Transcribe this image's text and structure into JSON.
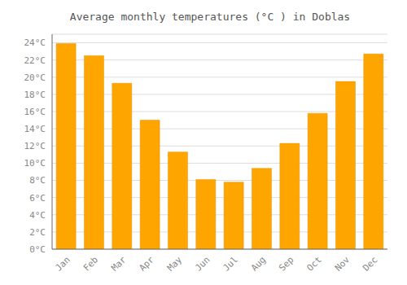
{
  "chart_data": {
    "type": "bar",
    "title": "Average monthly temperatures (°C ) in Doblas",
    "categories": [
      "Jan",
      "Feb",
      "Mar",
      "Apr",
      "May",
      "Jun",
      "Jul",
      "Aug",
      "Sep",
      "Oct",
      "Nov",
      "Dec"
    ],
    "values": [
      23.9,
      22.5,
      19.3,
      15.0,
      11.3,
      8.1,
      7.8,
      9.4,
      12.3,
      15.8,
      19.5,
      22.7
    ],
    "color": "#FFA500",
    "ylim": [
      0,
      25
    ],
    "yticks": [
      {
        "value": 0,
        "label": "0°C"
      },
      {
        "value": 2,
        "label": "2°C"
      },
      {
        "value": 4,
        "label": "4°C"
      },
      {
        "value": 6,
        "label": "6°C"
      },
      {
        "value": 8,
        "label": "8°C"
      },
      {
        "value": 10,
        "label": "10°C"
      },
      {
        "value": 12,
        "label": "12°C"
      },
      {
        "value": 14,
        "label": "14°C"
      },
      {
        "value": 16,
        "label": "16°C"
      },
      {
        "value": 18,
        "label": "18°C"
      },
      {
        "value": 20,
        "label": "20°C"
      },
      {
        "value": 22,
        "label": "22°C"
      },
      {
        "value": 24,
        "label": "24°C"
      }
    ],
    "grid": true
  }
}
